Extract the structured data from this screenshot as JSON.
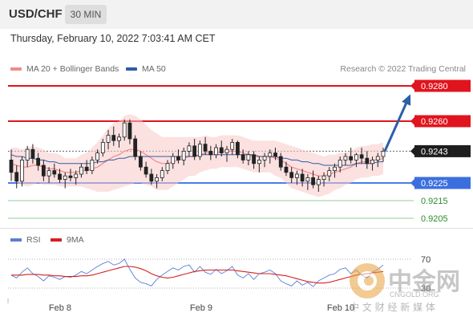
{
  "header": {
    "symbol": "USD/CHF",
    "timeframe": "30 MIN"
  },
  "datetime": "Thursday, February 10, 2022 7:03:41 AM CET",
  "legend": {
    "ma20_label": "MA 20 + Bollinger Bands",
    "ma20_color": "#f28a8a",
    "ma50_label": "MA 50",
    "ma50_color": "#2d5ea8"
  },
  "credit": "Research © 2022 Trading Central",
  "rsi_legend": {
    "rsi_label": "RSI",
    "rsi_color": "#5a7fd6",
    "ma_label": "9MA",
    "ma_color": "#d62020"
  },
  "watermark": {
    "cn_title": "中金网",
    "url": "CNGOLD.ORG",
    "cn_sub": "中 文 财 经 新 媒 体"
  },
  "chart_data": {
    "type": "candlestick",
    "price_axis": {
      "min": 0.9195,
      "max": 0.929
    },
    "x_labels": [
      "Feb 8",
      "Feb 9",
      "Feb 10"
    ],
    "levels": [
      {
        "value": "0.9280",
        "kind": "resistance",
        "color": "#e0141e"
      },
      {
        "value": "0.9260",
        "kind": "resistance",
        "color": "#e0141e"
      },
      {
        "value": "0.9243",
        "kind": "current",
        "color": "#222222"
      },
      {
        "value": "0.9225",
        "kind": "support",
        "color": "#4a7de8"
      },
      {
        "value": "0.9215",
        "kind": "support",
        "color": "#2e8b2e"
      },
      {
        "value": "0.9205",
        "kind": "support",
        "color": "#2e8b2e"
      }
    ],
    "projection": {
      "from": 0.9243,
      "to": 0.9278
    },
    "candles": [
      [
        0.9238,
        0.9244,
        0.9226,
        0.9231
      ],
      [
        0.9231,
        0.9235,
        0.9222,
        0.9226
      ],
      [
        0.9226,
        0.924,
        0.9223,
        0.9238
      ],
      [
        0.9238,
        0.9246,
        0.9234,
        0.9244
      ],
      [
        0.9244,
        0.9247,
        0.9236,
        0.9239
      ],
      [
        0.9239,
        0.9242,
        0.9232,
        0.9235
      ],
      [
        0.9235,
        0.9238,
        0.9226,
        0.9229
      ],
      [
        0.9229,
        0.9234,
        0.9225,
        0.9232
      ],
      [
        0.9232,
        0.9236,
        0.9228,
        0.923
      ],
      [
        0.923,
        0.9233,
        0.9225,
        0.9227
      ],
      [
        0.9227,
        0.9231,
        0.9222,
        0.9229
      ],
      [
        0.9229,
        0.9233,
        0.9226,
        0.9228
      ],
      [
        0.9228,
        0.9232,
        0.9224,
        0.923
      ],
      [
        0.923,
        0.9236,
        0.9228,
        0.9234
      ],
      [
        0.9234,
        0.9238,
        0.923,
        0.9232
      ],
      [
        0.9232,
        0.924,
        0.923,
        0.9238
      ],
      [
        0.9238,
        0.9244,
        0.9236,
        0.9242
      ],
      [
        0.9242,
        0.925,
        0.924,
        0.9248
      ],
      [
        0.9248,
        0.9255,
        0.9244,
        0.9252
      ],
      [
        0.9252,
        0.9257,
        0.9246,
        0.9249
      ],
      [
        0.9249,
        0.9253,
        0.9245,
        0.9251
      ],
      [
        0.9251,
        0.9261,
        0.9249,
        0.9259
      ],
      [
        0.9259,
        0.9261,
        0.9247,
        0.925
      ],
      [
        0.925,
        0.9252,
        0.9238,
        0.924
      ],
      [
        0.924,
        0.9243,
        0.9232,
        0.9234
      ],
      [
        0.9234,
        0.9237,
        0.9228,
        0.923
      ],
      [
        0.923,
        0.9233,
        0.9224,
        0.9226
      ],
      [
        0.9226,
        0.923,
        0.9222,
        0.9228
      ],
      [
        0.9228,
        0.9234,
        0.9226,
        0.9232
      ],
      [
        0.9232,
        0.9238,
        0.923,
        0.9236
      ],
      [
        0.9236,
        0.9242,
        0.9233,
        0.924
      ],
      [
        0.924,
        0.9244,
        0.9236,
        0.9238
      ],
      [
        0.9238,
        0.9245,
        0.9235,
        0.9243
      ],
      [
        0.9243,
        0.9248,
        0.924,
        0.9246
      ],
      [
        0.9246,
        0.925,
        0.9238,
        0.924
      ],
      [
        0.924,
        0.9249,
        0.9238,
        0.9247
      ],
      [
        0.9247,
        0.9251,
        0.9241,
        0.9243
      ],
      [
        0.9243,
        0.9246,
        0.9238,
        0.9241
      ],
      [
        0.9241,
        0.9247,
        0.9239,
        0.9245
      ],
      [
        0.9245,
        0.9249,
        0.924,
        0.9242
      ],
      [
        0.9242,
        0.9246,
        0.9237,
        0.9244
      ],
      [
        0.9244,
        0.925,
        0.9241,
        0.9248
      ],
      [
        0.9248,
        0.9249,
        0.9239,
        0.9241
      ],
      [
        0.9241,
        0.9244,
        0.9236,
        0.9238
      ],
      [
        0.9238,
        0.9243,
        0.9235,
        0.9241
      ],
      [
        0.9241,
        0.9243,
        0.9233,
        0.9236
      ],
      [
        0.9236,
        0.924,
        0.9231,
        0.9238
      ],
      [
        0.9238,
        0.9242,
        0.9234,
        0.924
      ],
      [
        0.924,
        0.9244,
        0.9236,
        0.9242
      ],
      [
        0.9242,
        0.9245,
        0.9238,
        0.924
      ],
      [
        0.924,
        0.9242,
        0.9232,
        0.9234
      ],
      [
        0.9234,
        0.9237,
        0.9229,
        0.9231
      ],
      [
        0.9231,
        0.9234,
        0.9225,
        0.9228
      ],
      [
        0.9228,
        0.9232,
        0.9224,
        0.923
      ],
      [
        0.923,
        0.9233,
        0.9223,
        0.9226
      ],
      [
        0.9226,
        0.923,
        0.9221,
        0.9228
      ],
      [
        0.9228,
        0.9232,
        0.9222,
        0.9224
      ],
      [
        0.9224,
        0.9229,
        0.922,
        0.9227
      ],
      [
        0.9227,
        0.9231,
        0.9223,
        0.9229
      ],
      [
        0.9229,
        0.9234,
        0.9226,
        0.9232
      ],
      [
        0.9232,
        0.9236,
        0.9228,
        0.9234
      ],
      [
        0.9234,
        0.924,
        0.9231,
        0.9238
      ],
      [
        0.9238,
        0.9242,
        0.9235,
        0.924
      ],
      [
        0.924,
        0.9245,
        0.9236,
        0.9238
      ],
      [
        0.9238,
        0.9242,
        0.9234,
        0.9241
      ],
      [
        0.9241,
        0.9245,
        0.9236,
        0.9239
      ],
      [
        0.9239,
        0.9243,
        0.9233,
        0.9236
      ],
      [
        0.9236,
        0.924,
        0.9232,
        0.9238
      ],
      [
        0.9238,
        0.9242,
        0.9234,
        0.924
      ],
      [
        0.924,
        0.9245,
        0.9237,
        0.9243
      ]
    ],
    "ma20": [
      0.9236,
      0.9235,
      0.9234,
      0.9234,
      0.9235,
      0.9235,
      0.9234,
      0.9233,
      0.9233,
      0.9232,
      0.9231,
      0.9231,
      0.9231,
      0.9232,
      0.9232,
      0.9233,
      0.9234,
      0.9236,
      0.9238,
      0.924,
      0.9241,
      0.9243,
      0.9244,
      0.9244,
      0.9243,
      0.9241,
      0.9239,
      0.9237,
      0.9236,
      0.9236,
      0.9237,
      0.9238,
      0.9239,
      0.924,
      0.924,
      0.9241,
      0.9242,
      0.9242,
      0.9242,
      0.9243,
      0.9243,
      0.9243,
      0.9243,
      0.9242,
      0.9241,
      0.924,
      0.924,
      0.924,
      0.924,
      0.9239,
      0.9238,
      0.9236,
      0.9234,
      0.9233,
      0.9232,
      0.9231,
      0.923,
      0.9229,
      0.9229,
      0.923,
      0.9231,
      0.9232,
      0.9233,
      0.9234,
      0.9236,
      0.9237,
      0.9237,
      0.9238,
      0.9238,
      0.9239
    ],
    "ma50": [
      0.9241,
      0.924,
      0.924,
      0.9239,
      0.9239,
      0.9238,
      0.9238,
      0.9237,
      0.9237,
      0.9236,
      0.9236,
      0.9236,
      0.9236,
      0.9236,
      0.9236,
      0.9236,
      0.9237,
      0.9237,
      0.9238,
      0.9238,
      0.9239,
      0.9239,
      0.924,
      0.924,
      0.924,
      0.924,
      0.924,
      0.924,
      0.924,
      0.924,
      0.924,
      0.924,
      0.924,
      0.924,
      0.924,
      0.9241,
      0.9241,
      0.9241,
      0.9241,
      0.9241,
      0.9241,
      0.9241,
      0.9241,
      0.9241,
      0.9241,
      0.9241,
      0.924,
      0.924,
      0.924,
      0.924,
      0.9239,
      0.9239,
      0.9238,
      0.9238,
      0.9237,
      0.9237,
      0.9236,
      0.9236,
      0.9235,
      0.9235,
      0.9235,
      0.9235,
      0.9235,
      0.9235,
      0.9236,
      0.9236,
      0.9236,
      0.9236,
      0.9237,
      0.9237
    ],
    "bb_width": [
      0.0009,
      0.001,
      0.001,
      0.0011,
      0.0011,
      0.001,
      0.001,
      0.0009,
      0.0009,
      0.0009,
      0.0008,
      0.0008,
      0.0008,
      0.0009,
      0.001,
      0.0012,
      0.0014,
      0.0016,
      0.0018,
      0.0019,
      0.0019,
      0.002,
      0.002,
      0.0019,
      0.0018,
      0.0017,
      0.0016,
      0.0016,
      0.0015,
      0.0015,
      0.0014,
      0.0013,
      0.0012,
      0.0011,
      0.0011,
      0.001,
      0.001,
      0.0009,
      0.0009,
      0.0009,
      0.0009,
      0.0009,
      0.0009,
      0.0009,
      0.0009,
      0.0009,
      0.0009,
      0.0009,
      0.0009,
      0.001,
      0.001,
      0.0011,
      0.0012,
      0.0012,
      0.0012,
      0.0012,
      0.0012,
      0.0012,
      0.0011,
      0.0011,
      0.001,
      0.001,
      0.0009,
      0.0009,
      0.0009,
      0.0009,
      0.0009,
      0.0009,
      0.0009,
      0.0009
    ],
    "rsi_axis": {
      "min": 20,
      "max": 80,
      "labels": [
        "70",
        "30"
      ]
    },
    "rsi": [
      48,
      44,
      52,
      58,
      50,
      46,
      40,
      47,
      45,
      42,
      46,
      45,
      48,
      53,
      50,
      55,
      60,
      64,
      67,
      62,
      64,
      70,
      56,
      44,
      38,
      36,
      33,
      42,
      48,
      53,
      58,
      55,
      60,
      62,
      52,
      60,
      52,
      49,
      56,
      50,
      54,
      60,
      48,
      44,
      50,
      42,
      50,
      52,
      55,
      50,
      40,
      36,
      33,
      40,
      34,
      38,
      32,
      40,
      44,
      48,
      50,
      56,
      58,
      50,
      55,
      48,
      44,
      52,
      56,
      62
    ],
    "rsi_ma": [
      48,
      48,
      48,
      49,
      49,
      49,
      48,
      48,
      47,
      47,
      46,
      46,
      46,
      47,
      47,
      48,
      50,
      52,
      54,
      56,
      58,
      60,
      60,
      59,
      57,
      54,
      50,
      47,
      45,
      44,
      45,
      47,
      49,
      51,
      53,
      54,
      55,
      55,
      55,
      55,
      55,
      55,
      54,
      53,
      52,
      51,
      50,
      50,
      50,
      49,
      48,
      47,
      45,
      43,
      41,
      39,
      38,
      37,
      37,
      38,
      40,
      42,
      44,
      46,
      48,
      49,
      50,
      51,
      52,
      53
    ]
  }
}
